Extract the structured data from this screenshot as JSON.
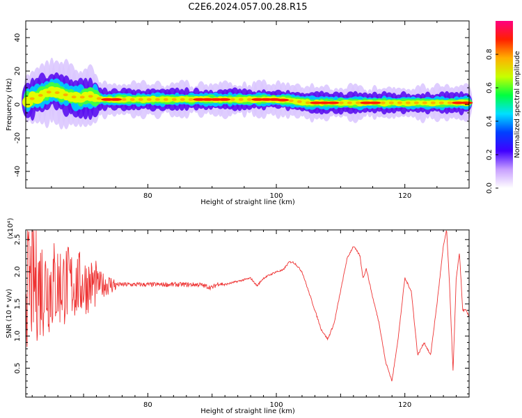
{
  "title": "C2E6.2024.057.00.28.R15",
  "chart_data": [
    {
      "type": "heatmap",
      "xlabel": "Height of straight line (km)",
      "ylabel": "Frequency (Hz)",
      "xlim": [
        61,
        130
      ],
      "ylim": [
        -50,
        50
      ],
      "x_ticks": [
        "80",
        "100",
        "120"
      ],
      "y_ticks": [
        "40",
        "20",
        "0",
        "-20",
        "-40"
      ],
      "x_tick_values": [
        80,
        100,
        120
      ],
      "y_tick_values": [
        40,
        20,
        0,
        -20,
        -40
      ],
      "colorbar": {
        "label": "Normalized spectral amplitude",
        "range": [
          0,
          1
        ],
        "ticks": [
          "0.0",
          "0.2",
          "0.4",
          "0.6",
          "0.8"
        ],
        "tick_values": [
          0.0,
          0.2,
          0.4,
          0.6,
          0.8
        ],
        "colors": [
          "#ffffff",
          "#c8a0ff",
          "#4000ff",
          "#0040ff",
          "#00e0ff",
          "#00ff40",
          "#c8ff00",
          "#ffb000",
          "#ff2000",
          "#ff0080"
        ]
      },
      "ridge": {
        "x": [
          61,
          63,
          65,
          67,
          69,
          71,
          73,
          75,
          80,
          85,
          90,
          95,
          100,
          103,
          105,
          108,
          112,
          116,
          120,
          124,
          127,
          130
        ],
        "y": [
          2,
          5,
          8,
          6,
          4,
          5,
          3,
          3,
          3,
          3,
          3,
          3,
          3,
          2,
          1,
          1,
          1,
          1,
          1,
          1,
          1,
          1
        ]
      }
    },
    {
      "type": "line",
      "xlabel": "Height of straight line (km)",
      "ylabel": "SNR (10 * v/v)",
      "y_multiplier": "(x10⁴)",
      "xlim": [
        61,
        130
      ],
      "ylim": [
        0.05,
        2.65
      ],
      "x_ticks": [
        "80",
        "100",
        "120"
      ],
      "y_ticks": [
        "2.5",
        "2.0",
        "1.5",
        "1.0",
        "0.5"
      ],
      "x_tick_values": [
        80,
        100,
        120
      ],
      "y_tick_values": [
        2.5,
        2.0,
        1.5,
        1.0,
        0.5
      ],
      "color": "#ee3333",
      "series": [
        {
          "x": [
            61,
            64,
            67,
            70,
            73,
            76,
            79,
            82,
            85,
            88,
            90,
            91,
            92,
            94,
            96,
            97,
            98,
            99,
            100,
            101,
            102,
            102.5,
            103,
            104,
            105,
            106,
            107,
            108,
            109,
            110,
            111,
            112,
            113,
            113.5,
            114,
            115,
            116,
            117,
            118,
            119,
            120,
            121,
            122,
            123,
            124,
            125,
            126,
            126.5,
            127,
            127.5,
            128,
            128.5,
            129,
            129.5,
            130
          ],
          "y": [
            1.8,
            1.8,
            1.8,
            1.8,
            1.8,
            1.8,
            1.8,
            1.8,
            1.8,
            1.8,
            1.75,
            1.82,
            1.8,
            1.85,
            1.9,
            1.78,
            1.9,
            1.95,
            2.0,
            2.02,
            2.15,
            2.15,
            2.12,
            2.0,
            1.7,
            1.4,
            1.1,
            0.95,
            1.2,
            1.7,
            2.2,
            2.4,
            2.25,
            1.9,
            2.05,
            1.6,
            1.2,
            0.6,
            0.3,
            1.0,
            1.9,
            1.7,
            0.7,
            0.9,
            0.7,
            1.5,
            2.4,
            2.65,
            1.7,
            0.45,
            1.9,
            2.3,
            1.4,
            1.4,
            1.3
          ]
        }
      ]
    }
  ]
}
